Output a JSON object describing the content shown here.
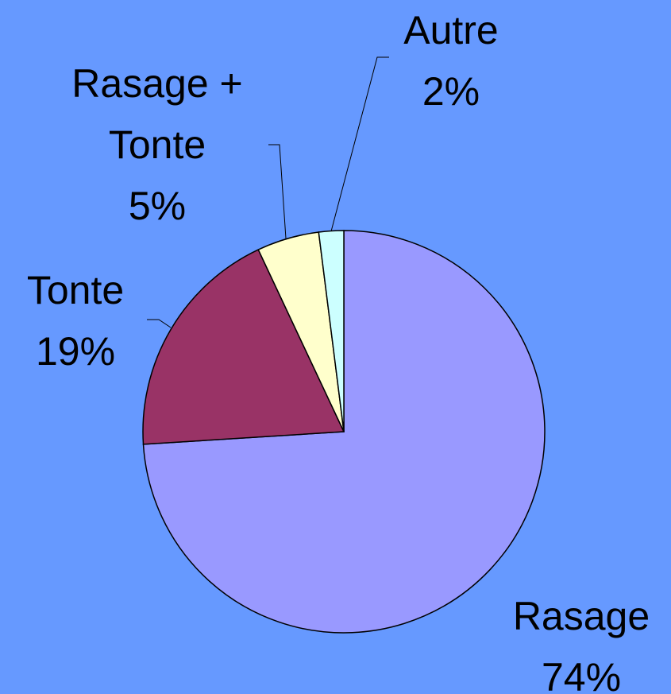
{
  "chart_data": {
    "type": "pie",
    "categories": [
      "Rasage",
      "Tonte",
      "Rasage + Tonte",
      "Autre"
    ],
    "values": [
      74,
      19,
      5,
      2
    ],
    "value_labels": [
      "74%",
      "19%",
      "5%",
      "2%"
    ],
    "colors": [
      "#9999ff",
      "#993366",
      "#ffffcc",
      "#ccffff"
    ]
  }
}
